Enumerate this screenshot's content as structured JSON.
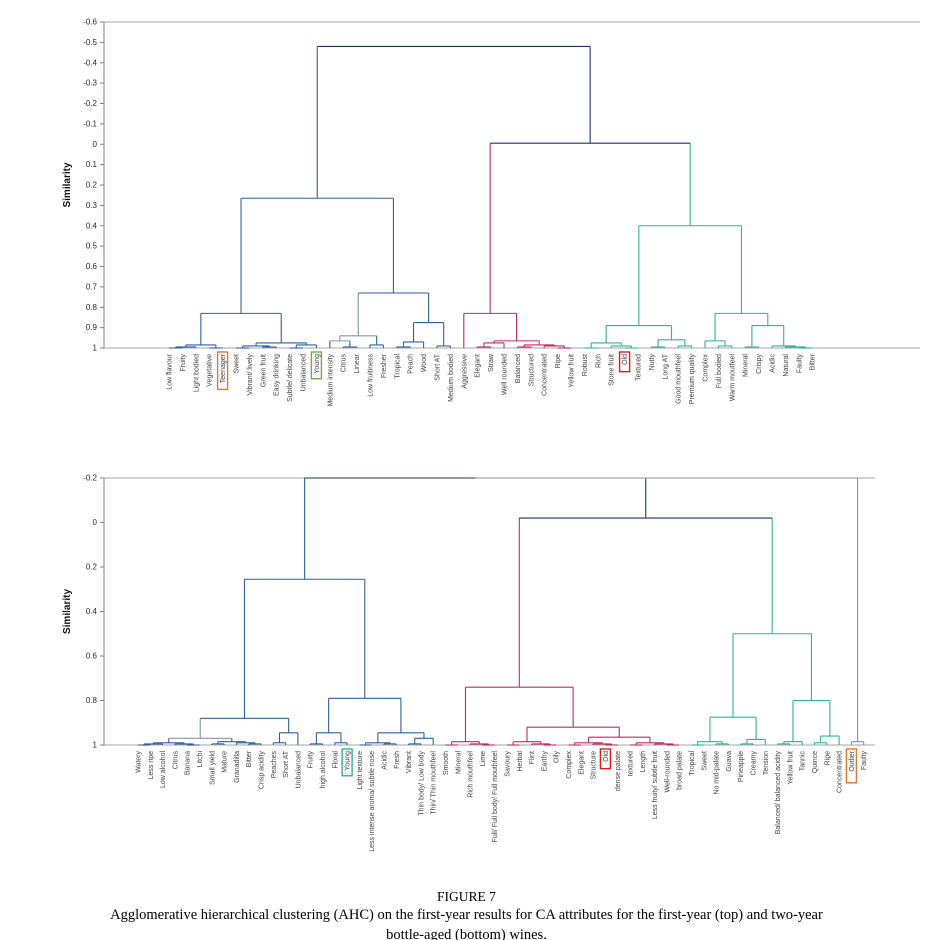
{
  "figure": {
    "caption_title": "FIGURE 7",
    "caption_line1": "Agglomerative hierarchical clustering (AHC) on the first-year results for CA attributes for the first-year (top) and two-year",
    "caption_line2": "bottle-aged (bottom) wines."
  },
  "palette": {
    "navy": "#17375E",
    "blue": "#2E5FA8",
    "steel": "#8496B0",
    "pink": "#C02B5B",
    "green": "#2EB48F",
    "gray": "#909090",
    "frame": "#A6A6A6",
    "axis": "#808080",
    "tick_text": "#262626",
    "label_text": "#404040",
    "box_orange": "#E0762F",
    "box_green": "#6FAD47",
    "box_red": "#E01B1B",
    "box_teal": "#2EB48F"
  },
  "chart_data": [
    {
      "type": "dendrogram",
      "title": "",
      "ylabel": "Similarity",
      "ylim": [
        -0.6,
        1
      ],
      "yticks": [
        "-0.6",
        "-0.5",
        "-0.4",
        "-0.3",
        "-0.2",
        "-0.1",
        "0",
        "0.1",
        "0.2",
        "0.3",
        "0.4",
        "0.5",
        "0.6",
        "0.7",
        "0.8",
        "0.9",
        "1"
      ],
      "leaves": [
        "Low flavour",
        "Fruity",
        "Light bodied",
        "Vegetative",
        "Teenager",
        "Sweet",
        "Vibrant/ lively",
        "Green fruit",
        "Easy drinking",
        "Subtle/ delicate",
        "Unbalanced",
        "Young",
        "Medium intensity",
        "Citrus",
        "Linear",
        "Low fruitiness",
        "Fresher",
        "Tropical",
        "Peach",
        "Wood",
        "Short AT",
        "Medium bodied",
        "Aggressive",
        "Elegant",
        "Straw",
        "Well rounded",
        "Balanced",
        "Structured",
        "Concentrated",
        "Ripe",
        "Yellow fruit",
        "Robust",
        "Rich",
        "Stone fruit",
        "Old",
        "Textured",
        "Nutty",
        "Long AT",
        "Good mouthfeel",
        "Premium quality",
        "Complex",
        "Full bodied",
        "Warm moutfeel",
        "Mineral",
        "Crispy",
        "Acidic",
        "Natural",
        "Faulty",
        "Bitter"
      ],
      "boxed": [
        {
          "index": 4,
          "label": "Teenager",
          "color": "box_orange"
        },
        {
          "index": 11,
          "label": "Young",
          "color": "box_green"
        },
        {
          "index": 34,
          "label": "Old",
          "color": "box_red"
        }
      ],
      "clusters": [
        {
          "from": 0,
          "to": 21,
          "color": "blue"
        },
        {
          "from": 22,
          "to": 30,
          "color": "pink"
        },
        {
          "from": 31,
          "to": 48,
          "color": "green"
        }
      ],
      "tree": [
        -0.48,
        [
          0.265,
          [
            0.83,
            [
              0.985,
              [
                0.995,
                [
                  1.0,
                  0,
                  1
                ],
                2
              ],
              [
                1.0,
                3,
                4
              ]
            ],
            [
              0.975,
              [
                0.99,
                [
                  1.0,
                  5,
                  6
                ],
                [
                  0.995,
                  7,
                  8
                ]
              ],
              [
                0.985,
                [
                  1.0,
                  9,
                  10
                ],
                11
              ]
            ]
          ],
          [
            0.73,
            [
              0.94,
              [
                0.965,
                12,
                [
                  0.995,
                  13,
                  14
                ],
                "steel"
              ],
              [
                0.985,
                15,
                16
              ],
              "steel"
            ],
            [
              0.875,
              [
                0.97,
                [
                  0.995,
                  17,
                  18
                ],
                19
              ],
              [
                0.99,
                20,
                21
              ]
            ]
          ]
        ],
        [
          -0.005,
          [
            0.83,
            22,
            [
              0.965,
              [
                0.975,
                [
                  0.995,
                  23,
                  24
                ],
                25
              ],
              [
                0.985,
                [
                  0.995,
                  26,
                  27
                ],
                [
                  0.99,
                  28,
                  [
                    1.0,
                    29,
                    30
                  ]
                ]
              ]
            ]
          ],
          [
            0.4,
            [
              0.89,
              [
                0.975,
                [
                  1.0,
                  31,
                  32
                ],
                [
                  0.99,
                  33,
                  [
                    1.0,
                    34,
                    35
                  ]
                ]
              ],
              [
                0.96,
                [
                  0.995,
                  36,
                  37
                ],
                [
                  0.99,
                  38,
                  39
                ]
              ]
            ],
            [
              0.83,
              [
                0.965,
                40,
                [
                  0.99,
                  41,
                  42
                ]
              ],
              [
                0.89,
                [
                  0.995,
                  43,
                  44
                ],
                [
                  0.99,
                  45,
                  [
                    0.995,
                    46,
                    [
                      1.0,
                      47,
                      48
                    ]
                  ]
                ]
              ]
            ]
          ],
          "navy"
        ],
        "navy"
      ]
    },
    {
      "type": "dendrogram",
      "title": "",
      "ylabel": "Similarity",
      "ylim": [
        -0.2,
        1
      ],
      "yticks": [
        "-0.2",
        "0",
        "0.2",
        "0.4",
        "0.6",
        "0.8",
        "1"
      ],
      "leaves": [
        "Watery",
        "Less ripe",
        "Low alcohol",
        "Citrus",
        "Banana",
        "Litchi",
        "Small yield",
        "Mature",
        "Granadilla",
        "Bitter",
        "Crisp acidity",
        "Peaches",
        "Short AT",
        "Unbalanced",
        "Fruity",
        "high alcohol",
        "Floral",
        "Young",
        "Light texture",
        "Less intense aroma/ subtle nose",
        "Acidic",
        "Fresh",
        "Vibrant",
        "Thin body/ Low body",
        "Thin/ Thin mouthfeel",
        "Smooth",
        "Mineral",
        "Rich mouthfeel",
        "Lime",
        "Full/ Full body/ Full mouthfeel",
        "Savoury",
        "Herbal",
        "Flint",
        "Earthy",
        "Oily",
        "Complex",
        "Elegant",
        "Structure",
        "Old",
        "dense palate",
        "textured",
        "Length",
        "Less fruity/ subtle fruit",
        "Well-rounded",
        "broad palate",
        "Tropical",
        "Sweet",
        "No mid-palate",
        "Guava",
        "Pineapple",
        "Creamy",
        "Tension",
        "Balanced/ balanced acidity",
        "Yellow fruit",
        "Tannic",
        "Quince",
        "Ripe",
        "Concentrated",
        "Outlier",
        "Faulty"
      ],
      "boxed": [
        {
          "index": 17,
          "label": "Young",
          "color": "box_teal"
        },
        {
          "index": 38,
          "label": "Old",
          "color": "box_red"
        },
        {
          "index": 58,
          "label": "Outlier",
          "color": "box_orange"
        }
      ],
      "clusters": [
        {
          "from": 0,
          "to": 24,
          "color": "blue"
        },
        {
          "from": 25,
          "to": 44,
          "color": "pink"
        },
        {
          "from": 45,
          "to": 57,
          "color": "green"
        },
        {
          "from": 58,
          "to": 59,
          "color": "gray"
        }
      ],
      "tree": [
        -0.2,
        [
          -0.2,
          [
            0.255,
            [
              0.88,
              [
                0.97,
                [
                  0.99,
                  [
                    0.995,
                    [
                      1.0,
                      0,
                      1
                    ],
                    2
                  ],
                  [
                    0.995,
                    3,
                    [
                      1.0,
                      4,
                      5
                    ]
                  ]
                ],
                [
                  0.985,
                  [
                    0.995,
                    6,
                    7
                  ],
                  [
                    0.99,
                    8,
                    [
                      0.995,
                      9,
                      10
                    ]
                  ]
                ],
                "steel"
              ],
              [
                0.945,
                [
                  0.99,
                  11,
                  12
                ],
                13
              ]
            ],
            [
              0.79,
              [
                0.945,
                [
                  0.995,
                  14,
                  15
                ],
                [
                  0.99,
                  16,
                  17
                ]
              ],
              [
                0.945,
                [
                  0.99,
                  [
                    1.0,
                    18,
                    19
                  ],
                  [
                    0.995,
                    20,
                    21
                  ]
                ],
                [
                  0.97,
                  [
                    0.995,
                    22,
                    23
                  ],
                  24
                ]
              ]
            ]
          ],
          [
            -0.02,
            [
              0.74,
              [
                0.985,
                [
                  1.0,
                  25,
                  26
                ],
                [
                  0.995,
                  27,
                  [
                    1.0,
                    28,
                    29
                  ]
                ]
              ],
              [
                0.92,
                [
                  0.985,
                  [
                    1.0,
                    30,
                    31
                  ],
                  [
                    0.995,
                    32,
                    [
                      1.0,
                      33,
                      34
                    ]
                  ]
                ],
                [
                  0.965,
                  [
                    0.99,
                    [
                      1.0,
                      35,
                      36
                    ],
                    [
                      0.995,
                      37,
                      [
                        1.0,
                        38,
                        39
                      ]
                    ]
                  ],
                  [
                    0.99,
                    [
                      1.0,
                      40,
                      41
                    ],
                    [
                      0.995,
                      42,
                      [
                        1.0,
                        43,
                        44
                      ]
                    ]
                  ]
                ]
              ]
            ],
            [
              0.5,
              [
                0.875,
                [
                  0.985,
                  [
                    1.0,
                    45,
                    46
                  ],
                  [
                    0.995,
                    47,
                    48
                  ]
                ],
                [
                  0.975,
                  [
                    0.995,
                    49,
                    50
                  ],
                  51
                ]
              ],
              [
                0.8,
                [
                  0.985,
                  [
                    0.995,
                    52,
                    53
                  ],
                  54
                ],
                [
                  0.96,
                  [
                    0.99,
                    55,
                    56
                  ],
                  57
                ]
              ]
            ],
            "navy"
          ],
          "navy"
        ],
        [
          0.985,
          58,
          59,
          "gray"
        ],
        "gray"
      ]
    }
  ]
}
